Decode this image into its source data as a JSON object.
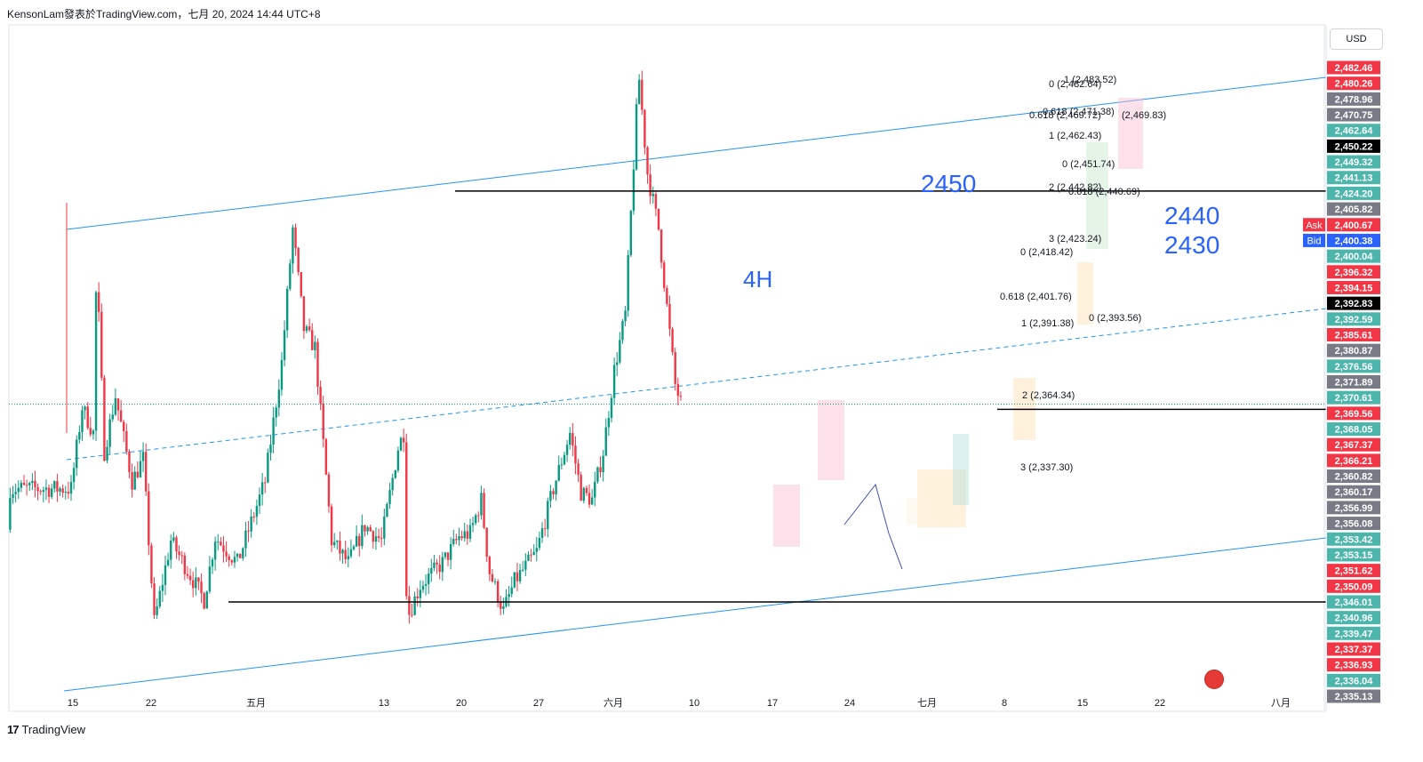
{
  "header": {
    "title": "KensonLam發表於TradingView.com，七月 20, 2024 14:44 UTC+8"
  },
  "currency_button": "USD",
  "footer": {
    "brand": "TradingView"
  },
  "colors": {
    "up": "#089981",
    "down": "#f23645",
    "channel": "#2196f3",
    "text_blue": "#2962ff",
    "hline": "#000000"
  },
  "annotations": {
    "timeframe": "4H",
    "level_2450": "2450",
    "level_2440": "2440",
    "level_2430": "2430"
  },
  "fib_labels": [
    "1 (2,483.52)",
    "0 (2,482.64)",
    "0.618 (2,471.38)",
    "0.618 (2,469.72)",
    "(2,469.83)",
    "1 (2,462.43)",
    "0 (2,451.74)",
    "2 (2,442.82)",
    "0.618 (2,440.69)",
    "3 (2,423.24)",
    "0 (2,418.42)",
    "0.618 (2,401.76)",
    "0 (2,393.56)",
    "1 (2,391.38)",
    "2 (2,364.34)",
    "3 (2,337.30)"
  ],
  "price_labels": [
    {
      "text": "2,482.46",
      "kind": "down"
    },
    {
      "text": "2,480.26",
      "kind": "down"
    },
    {
      "text": "2,478.96",
      "kind": "gray"
    },
    {
      "text": "2,470.75",
      "kind": "gray"
    },
    {
      "text": "2,462.64",
      "kind": "up"
    },
    {
      "text": "2,450.22",
      "kind": "black"
    },
    {
      "text": "2,449.32",
      "kind": "up"
    },
    {
      "text": "2,441.13",
      "kind": "up"
    },
    {
      "text": "2,424.20",
      "kind": "up"
    },
    {
      "text": "2,405.82",
      "kind": "gray"
    },
    {
      "text": "2,400.67",
      "kind": "down"
    },
    {
      "text": "2,400.38",
      "kind": "blue"
    },
    {
      "text": "2,400.04",
      "kind": "up"
    },
    {
      "text": "2,396.32",
      "kind": "down"
    },
    {
      "text": "2,394.15",
      "kind": "down"
    },
    {
      "text": "2,392.83",
      "kind": "black"
    },
    {
      "text": "2,392.59",
      "kind": "up"
    },
    {
      "text": "2,385.61",
      "kind": "down"
    },
    {
      "text": "2,380.87",
      "kind": "gray"
    },
    {
      "text": "2,376.56",
      "kind": "up"
    },
    {
      "text": "2,371.89",
      "kind": "gray"
    },
    {
      "text": "2,370.61",
      "kind": "up"
    },
    {
      "text": "2,369.56",
      "kind": "down"
    },
    {
      "text": "2,368.05",
      "kind": "up"
    },
    {
      "text": "2,367.37",
      "kind": "down"
    },
    {
      "text": "2,366.21",
      "kind": "down"
    },
    {
      "text": "2,360.82",
      "kind": "gray"
    },
    {
      "text": "2,360.17",
      "kind": "gray"
    },
    {
      "text": "2,356.99",
      "kind": "gray"
    },
    {
      "text": "2,356.08",
      "kind": "gray"
    },
    {
      "text": "2,353.42",
      "kind": "up"
    },
    {
      "text": "2,353.15",
      "kind": "up"
    },
    {
      "text": "2,351.62",
      "kind": "down"
    },
    {
      "text": "2,350.09",
      "kind": "down"
    },
    {
      "text": "2,346.01",
      "kind": "up"
    },
    {
      "text": "2,340.96",
      "kind": "up"
    },
    {
      "text": "2,339.47",
      "kind": "up"
    },
    {
      "text": "2,337.37",
      "kind": "down"
    },
    {
      "text": "2,336.93",
      "kind": "down"
    },
    {
      "text": "2,336.04",
      "kind": "up"
    },
    {
      "text": "2,335.13",
      "kind": "gray"
    }
  ],
  "ask_label": "Ask",
  "bid_label": "Bid",
  "chart_data": {
    "type": "candlestick",
    "x_ticks": [
      "15",
      "22",
      "五月",
      "13",
      "20",
      "27",
      "六月",
      "10",
      "17",
      "24",
      "七月",
      "8",
      "15",
      "22",
      "八月"
    ],
    "ylim": [
      2310,
      2495
    ],
    "horizontal_levels": [
      2450.22,
      2392.83,
      2339.47
    ],
    "last_price": 2392.83,
    "swing_path": [
      {
        "d": 0,
        "p": 2370
      },
      {
        "d": 1,
        "p": 2392
      },
      {
        "d": 2,
        "p": 2385
      },
      {
        "d": 2.3,
        "p": 2430
      },
      {
        "d": 3,
        "p": 2380
      },
      {
        "d": 4,
        "p": 2395
      },
      {
        "d": 5.5,
        "p": 2372
      },
      {
        "d": 6.5,
        "p": 2378
      },
      {
        "d": 7.5,
        "p": 2334
      },
      {
        "d": 9,
        "p": 2356
      },
      {
        "d": 12,
        "p": 2340
      },
      {
        "d": 13,
        "p": 2357
      },
      {
        "d": 15,
        "p": 2350
      },
      {
        "d": 17.5,
        "p": 2372
      },
      {
        "d": 19,
        "p": 2404
      },
      {
        "d": 20,
        "p": 2440
      },
      {
        "d": 21,
        "p": 2413
      },
      {
        "d": 22,
        "p": 2408
      },
      {
        "d": 23.5,
        "p": 2356
      },
      {
        "d": 25,
        "p": 2350
      },
      {
        "d": 26.5,
        "p": 2360
      },
      {
        "d": 28,
        "p": 2356
      },
      {
        "d": 29.5,
        "p": 2381
      },
      {
        "d": 30,
        "p": 2385
      },
      {
        "d": 30.3,
        "p": 2335
      },
      {
        "d": 31.5,
        "p": 2344
      },
      {
        "d": 33.5,
        "p": 2350
      },
      {
        "d": 35,
        "p": 2357
      },
      {
        "d": 36,
        "p": 2358
      },
      {
        "d": 37,
        "p": 2367
      },
      {
        "d": 37.7,
        "p": 2348
      },
      {
        "d": 39,
        "p": 2337
      },
      {
        "d": 40,
        "p": 2345
      },
      {
        "d": 42,
        "p": 2353
      },
      {
        "d": 43.5,
        "p": 2370
      },
      {
        "d": 45,
        "p": 2385
      },
      {
        "d": 46,
        "p": 2369
      },
      {
        "d": 47,
        "p": 2367
      },
      {
        "d": 48,
        "p": 2380
      },
      {
        "d": 49,
        "p": 2402
      },
      {
        "d": 50,
        "p": 2417
      },
      {
        "d": 51.2,
        "p": 2482
      },
      {
        "d": 52,
        "p": 2455
      },
      {
        "d": 53,
        "p": 2440
      },
      {
        "d": 54.5,
        "p": 2398
      },
      {
        "d": 55,
        "p": 2393
      }
    ]
  }
}
